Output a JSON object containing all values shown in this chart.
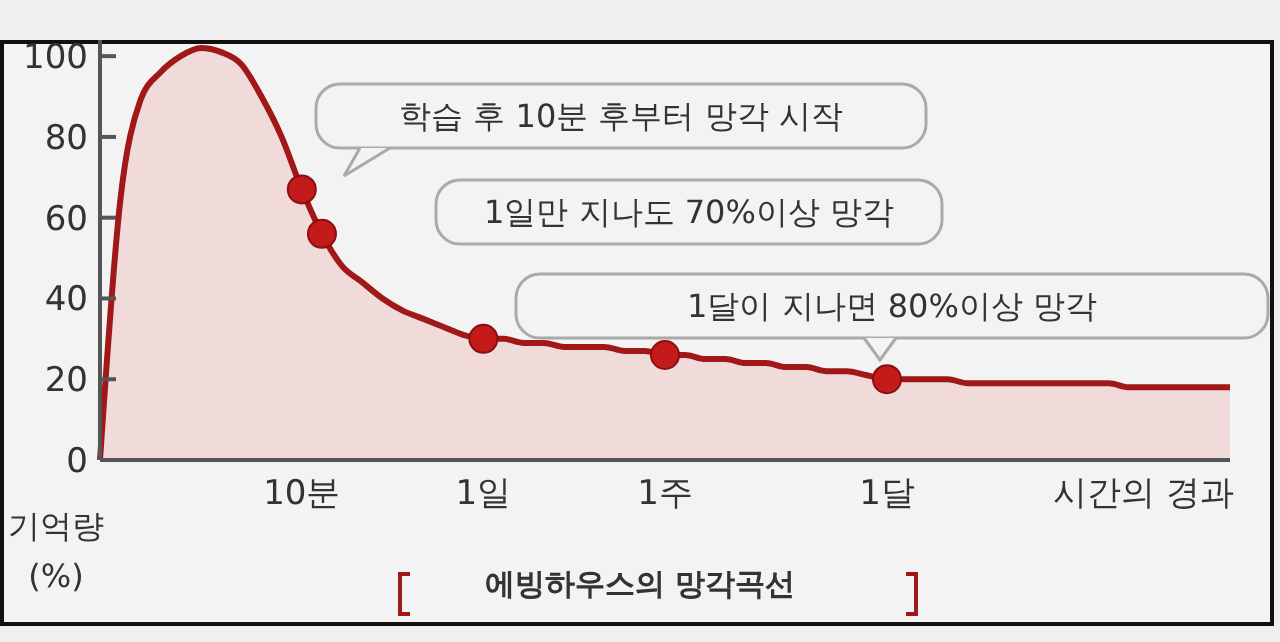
{
  "chart_data": {
    "type": "area",
    "title": "에빙하우스의 망각곡선",
    "xlabel": "시간의 경과",
    "ylabel": "기억량\n(%)",
    "annotations": [
      "학습 후 10분 후부터 망각 시작",
      "1일만 지나도 70%이상 망각",
      "1달이 지나면 80%이상 망각"
    ],
    "categories": [
      null,
      null,
      null,
      null,
      null,
      null,
      null,
      null,
      null,
      null,
      "10분",
      null,
      null,
      null,
      null,
      null,
      null,
      null,
      null,
      "1일",
      null,
      null,
      null,
      null,
      null,
      null,
      null,
      null,
      "1주",
      null,
      null,
      null,
      null,
      null,
      null,
      null,
      null,
      null,
      null,
      "1달",
      null,
      null,
      null,
      null,
      null,
      null,
      null,
      null,
      null,
      null,
      null,
      null,
      null,
      null,
      null,
      null,
      null
    ],
    "ylim": [
      0,
      104
    ],
    "yticks": [
      0,
      20,
      40,
      60,
      80,
      100
    ],
    "series": [
      {
        "color": "#a01818",
        "values": [
          0,
          64,
          89,
          96,
          100,
          102,
          101,
          98,
          90,
          80,
          67,
          56,
          48,
          44,
          40,
          37,
          35,
          33,
          31,
          30,
          30,
          29,
          29,
          28,
          28,
          28,
          27,
          27,
          26,
          26,
          25,
          25,
          24,
          24,
          23,
          23,
          22,
          22,
          21,
          20,
          20,
          20,
          20,
          19,
          19,
          19,
          19,
          19,
          19,
          19,
          19,
          18,
          18,
          18,
          18,
          18,
          18
        ]
      },
      {
        "type": "scatter",
        "color": "#c41a1a",
        "values": [
          null,
          null,
          null,
          null,
          null,
          null,
          null,
          null,
          null,
          null,
          67,
          56,
          null,
          null,
          null,
          null,
          null,
          null,
          null,
          30,
          null,
          null,
          null,
          null,
          null,
          null,
          null,
          null,
          26,
          null,
          null,
          null,
          null,
          null,
          null,
          null,
          null,
          null,
          null,
          20,
          null,
          null,
          null,
          null,
          null,
          null,
          null,
          null,
          null,
          null,
          null,
          null,
          null,
          null,
          null,
          null,
          null
        ]
      }
    ],
    "grid": false
  }
}
